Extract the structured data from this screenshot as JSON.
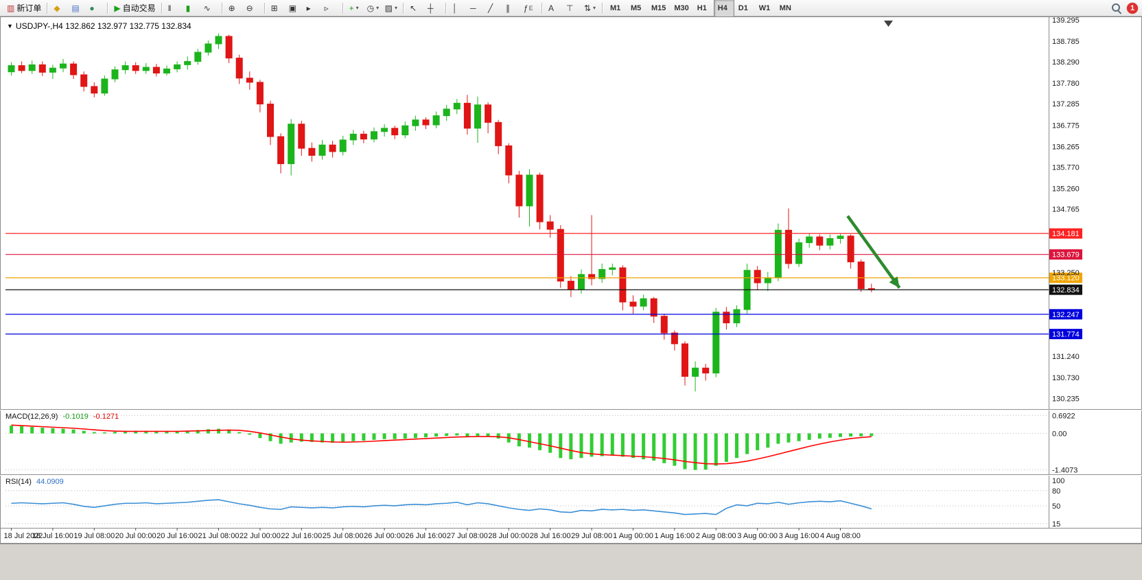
{
  "toolbar": {
    "notification_count": "1",
    "timeframes": [
      "M1",
      "M5",
      "M15",
      "M30",
      "H1",
      "H4",
      "D1",
      "W1",
      "MN"
    ],
    "active_timeframe": "H4",
    "groups": [
      {
        "name": "trade",
        "items": [
          {
            "name": "new-order-button",
            "glyph": "▥",
            "glyph_color": "#c03030",
            "label": "新订单"
          }
        ]
      },
      {
        "name": "windows",
        "items": [
          {
            "name": "symbols-icon-button",
            "glyph": "◆",
            "glyph_color": "#d4a017"
          },
          {
            "name": "market-watch-icon-button",
            "glyph": "▤",
            "glyph_color": "#4472c4"
          },
          {
            "name": "navigator-icon-button",
            "glyph": "●",
            "glyph_color": "#2e8b57"
          }
        ]
      },
      {
        "name": "autotrade",
        "items": [
          {
            "name": "autotrade-button",
            "glyph": "▶",
            "glyph_color": "#18a018",
            "label": "自动交易"
          }
        ]
      },
      {
        "name": "chart-type",
        "items": [
          {
            "name": "bars-chart-button",
            "glyph": "‖",
            "glyph_color": "#333333"
          },
          {
            "name": "candlestick-chart-button",
            "glyph": "▮",
            "glyph_color": "#18a018"
          },
          {
            "name": "line-chart-button",
            "glyph": "∿",
            "glyph_color": "#333333"
          }
        ]
      },
      {
        "name": "zoom",
        "items": [
          {
            "name": "zoom-in-button",
            "glyph": "⊕",
            "glyph_color": "#333333"
          },
          {
            "name": "zoom-out-button",
            "glyph": "⊖",
            "glyph_color": "#333333"
          }
        ]
      },
      {
        "name": "layout",
        "items": [
          {
            "name": "tile-windows-button",
            "glyph": "⊞",
            "glyph_color": "#333333"
          },
          {
            "name": "cascade-windows-button",
            "glyph": "▣",
            "glyph_color": "#333333"
          },
          {
            "name": "auto-scroll-button",
            "glyph": "▸",
            "glyph_color": "#333333"
          },
          {
            "name": "chart-shift-button",
            "glyph": "▹",
            "glyph_color": "#333333"
          }
        ]
      },
      {
        "name": "insert",
        "items": [
          {
            "name": "indicators-button",
            "glyph": "+",
            "glyph_color": "#18a018",
            "caret": true
          },
          {
            "name": "periods-button",
            "glyph": "◷",
            "glyph_color": "#333333",
            "caret": true
          },
          {
            "name": "templates-button",
            "glyph": "▨",
            "glyph_color": "#333333",
            "caret": true
          }
        ]
      },
      {
        "name": "cursor",
        "items": [
          {
            "name": "cursor-button",
            "glyph": "↖",
            "glyph_color": "#333333"
          },
          {
            "name": "crosshair-button",
            "glyph": "┼",
            "glyph_color": "#333333"
          }
        ]
      },
      {
        "name": "objects",
        "items": [
          {
            "name": "vertical-line-button",
            "glyph": "│",
            "glyph_color": "#333333"
          },
          {
            "name": "horizontal-line-button",
            "glyph": "─",
            "glyph_color": "#333333"
          },
          {
            "name": "trendline-button",
            "glyph": "╱",
            "glyph_color": "#333333"
          },
          {
            "name": "channel-button",
            "glyph": "∥",
            "glyph_color": "#333333"
          },
          {
            "name": "fibonacci-button",
            "glyph": "ƒ",
            "glyph_color": "#333333",
            "sub": "E"
          }
        ]
      },
      {
        "name": "text-tools",
        "items": [
          {
            "name": "text-button",
            "glyph": "A",
            "glyph_color": "#333333"
          },
          {
            "name": "label-button",
            "glyph": "⊤",
            "glyph_color": "#333333"
          },
          {
            "name": "arrows-button",
            "glyph": "⇅",
            "glyph_color": "#333333",
            "caret": true
          }
        ]
      }
    ]
  },
  "chart": {
    "title": "USDJPY-,H4 132.862 132.977 132.775 132.834",
    "symbol": "USDJPY-",
    "timeframe": "H4"
  },
  "indicators": {
    "macd": {
      "label": "MACD(12,26,9)",
      "value": "-0.1019",
      "signal_value": "-0.1271"
    },
    "rsi": {
      "label": "RSI(14)",
      "value": "44.0909"
    }
  },
  "colors": {
    "bull": "#1cb41c",
    "bear": "#e01515",
    "background": "#ffffff",
    "status_bg": "#d6d3ce",
    "arrow_green": "#2d8a2d",
    "line_red": "#ff2222",
    "line_crimson": "#dc143c",
    "line_orange": "#f0a500",
    "line_blue": "#0000dd",
    "line_black": "#111111"
  },
  "chart_data": [
    {
      "type": "candlestick",
      "title": "USDJPY-,H4",
      "ohlc_display": {
        "open": 132.862,
        "high": 132.977,
        "low": 132.775,
        "close": 132.834
      },
      "y_range": [
        130.01,
        139.31
      ],
      "y_ticks": [
        139.295,
        138.785,
        138.29,
        137.78,
        137.285,
        136.775,
        136.265,
        135.77,
        135.26,
        134.765,
        133.25,
        131.24,
        130.73,
        130.235
      ],
      "hlines": [
        {
          "price": 134.181,
          "color": "#ff2222",
          "name": "resistance-line-upper"
        },
        {
          "price": 133.679,
          "color": "#dc143c",
          "name": "resistance-line-lower"
        },
        {
          "price": 133.12,
          "color": "#f0a500",
          "name": "pivot-line-orange"
        },
        {
          "price": 132.834,
          "color": "#111111",
          "name": "current-price-line"
        },
        {
          "price": 132.247,
          "color": "#0000dd",
          "name": "support-line-upper"
        },
        {
          "price": 131.774,
          "color": "#0000dd",
          "name": "support-line-lower"
        }
      ],
      "x_ticks": {
        "every": 4,
        "labels": [
          "18 Jul 2022",
          "18 Jul 16:00",
          "19 Jul 08:00",
          "20 Jul 00:00",
          "20 Jul 16:00",
          "21 Jul 08:00",
          "22 Jul 00:00",
          "22 Jul 16:00",
          "25 Jul 08:00",
          "26 Jul 00:00",
          "26 Jul 16:00",
          "27 Jul 08:00",
          "28 Jul 00:00",
          "28 Jul 16:00",
          "29 Jul 08:00",
          "1 Aug 00:00",
          "1 Aug 16:00",
          "2 Aug 08:00",
          "3 Aug 00:00",
          "3 Aug 16:00",
          "4 Aug 08:00"
        ]
      },
      "arrow": {
        "from_index": 81,
        "from_price": 134.6,
        "to_index": 86,
        "to_price": 132.88,
        "color": "#2d8a2d"
      },
      "candles": [
        [
          138.05,
          138.28,
          137.96,
          138.2
        ],
        [
          138.2,
          138.3,
          138.02,
          138.08
        ],
        [
          138.08,
          138.32,
          138.0,
          138.22
        ],
        [
          138.22,
          138.3,
          137.95,
          138.04
        ],
        [
          138.04,
          138.22,
          137.88,
          138.14
        ],
        [
          138.14,
          138.36,
          138.04,
          138.24
        ],
        [
          138.24,
          138.3,
          137.88,
          137.98
        ],
        [
          137.98,
          138.06,
          137.58,
          137.7
        ],
        [
          137.7,
          137.8,
          137.44,
          137.54
        ],
        [
          137.54,
          137.96,
          137.48,
          137.88
        ],
        [
          137.88,
          138.18,
          137.8,
          138.1
        ],
        [
          138.1,
          138.3,
          138.0,
          138.2
        ],
        [
          138.2,
          138.28,
          138.0,
          138.08
        ],
        [
          138.08,
          138.26,
          138.0,
          138.16
        ],
        [
          138.16,
          138.24,
          137.94,
          138.02
        ],
        [
          138.02,
          138.2,
          137.96,
          138.12
        ],
        [
          138.12,
          138.3,
          138.04,
          138.22
        ],
        [
          138.22,
          138.42,
          138.1,
          138.3
        ],
        [
          138.3,
          138.6,
          138.22,
          138.52
        ],
        [
          138.52,
          138.8,
          138.44,
          138.72
        ],
        [
          138.72,
          138.97,
          138.6,
          138.9
        ],
        [
          138.9,
          138.94,
          138.26,
          138.38
        ],
        [
          138.38,
          138.46,
          137.76,
          137.9
        ],
        [
          137.9,
          138.06,
          137.62,
          137.8
        ],
        [
          137.8,
          137.86,
          137.08,
          137.28
        ],
        [
          137.28,
          137.36,
          136.3,
          136.5
        ],
        [
          136.5,
          136.58,
          135.62,
          135.85
        ],
        [
          135.85,
          136.92,
          135.57,
          136.8
        ],
        [
          136.8,
          136.88,
          136.04,
          136.22
        ],
        [
          136.22,
          136.36,
          135.9,
          136.05
        ],
        [
          136.05,
          136.42,
          135.95,
          136.3
        ],
        [
          136.3,
          136.4,
          136.0,
          136.14
        ],
        [
          136.14,
          136.52,
          136.05,
          136.42
        ],
        [
          136.42,
          136.66,
          136.3,
          136.56
        ],
        [
          136.56,
          136.64,
          136.34,
          136.44
        ],
        [
          136.44,
          136.72,
          136.36,
          136.62
        ],
        [
          136.62,
          136.8,
          136.5,
          136.7
        ],
        [
          136.7,
          136.76,
          136.44,
          136.54
        ],
        [
          136.54,
          136.86,
          136.46,
          136.76
        ],
        [
          136.76,
          137.0,
          136.64,
          136.9
        ],
        [
          136.9,
          136.96,
          136.68,
          136.78
        ],
        [
          136.78,
          137.1,
          136.7,
          137.0
        ],
        [
          137.0,
          137.26,
          136.88,
          137.16
        ],
        [
          137.16,
          137.4,
          137.04,
          137.3
        ],
        [
          137.3,
          137.5,
          136.55,
          136.7
        ],
        [
          136.7,
          137.46,
          136.35,
          137.26
        ],
        [
          137.26,
          137.32,
          136.58,
          136.84
        ],
        [
          136.84,
          136.9,
          136.08,
          136.28
        ],
        [
          136.28,
          136.34,
          135.38,
          135.58
        ],
        [
          135.58,
          135.68,
          134.56,
          134.84
        ],
        [
          134.84,
          135.72,
          134.35,
          135.58
        ],
        [
          135.58,
          135.64,
          134.28,
          134.46
        ],
        [
          134.46,
          134.62,
          134.08,
          134.28
        ],
        [
          134.28,
          134.38,
          132.88,
          133.04
        ],
        [
          133.04,
          133.16,
          132.66,
          132.84
        ],
        [
          132.84,
          133.32,
          132.74,
          133.2
        ],
        [
          133.2,
          134.62,
          132.94,
          133.1
        ],
        [
          133.1,
          133.46,
          133.0,
          133.32
        ],
        [
          133.32,
          133.46,
          133.18,
          133.36
        ],
        [
          133.36,
          133.42,
          132.34,
          132.54
        ],
        [
          132.54,
          132.7,
          132.26,
          132.44
        ],
        [
          132.44,
          132.72,
          132.34,
          132.62
        ],
        [
          132.62,
          132.66,
          132.04,
          132.2
        ],
        [
          132.2,
          132.26,
          131.64,
          131.8
        ],
        [
          131.8,
          131.86,
          131.38,
          131.54
        ],
        [
          131.54,
          131.6,
          130.54,
          130.76
        ],
        [
          130.76,
          131.12,
          130.4,
          130.96
        ],
        [
          130.96,
          131.06,
          130.66,
          130.84
        ],
        [
          130.84,
          132.4,
          130.74,
          132.3
        ],
        [
          132.3,
          132.42,
          131.88,
          132.04
        ],
        [
          132.04,
          132.46,
          131.94,
          132.36
        ],
        [
          132.36,
          133.46,
          132.26,
          133.3
        ],
        [
          133.3,
          133.4,
          132.82,
          133.0
        ],
        [
          133.0,
          133.26,
          132.8,
          133.12
        ],
        [
          133.12,
          134.42,
          133.04,
          134.26
        ],
        [
          134.26,
          134.78,
          133.34,
          133.46
        ],
        [
          133.46,
          134.06,
          133.38,
          133.96
        ],
        [
          133.96,
          134.18,
          133.84,
          134.1
        ],
        [
          134.1,
          134.16,
          133.78,
          133.9
        ],
        [
          133.9,
          134.16,
          133.8,
          134.06
        ],
        [
          134.06,
          134.18,
          133.94,
          134.12
        ],
        [
          134.12,
          134.16,
          133.34,
          133.5
        ],
        [
          133.5,
          133.56,
          132.78,
          132.86
        ],
        [
          132.862,
          132.977,
          132.775,
          132.834
        ]
      ]
    },
    {
      "type": "bar",
      "name": "MACD(12,26,9)",
      "current": -0.1019,
      "signal_current": -0.1271,
      "y_range": [
        -1.5,
        0.78
      ],
      "y_ticks": [
        {
          "v": 0.6922,
          "label": "0.6922"
        },
        {
          "v": 0,
          "label": "0.00"
        },
        {
          "v": -1.4073,
          "label": "-1.4073"
        }
      ],
      "histogram_color": "#32cd32",
      "signal_color": "#ff0000",
      "histogram": [
        0.3,
        0.28,
        0.25,
        0.22,
        0.2,
        0.18,
        0.15,
        0.1,
        0.05,
        0.04,
        0.06,
        0.08,
        0.1,
        0.1,
        0.08,
        0.07,
        0.08,
        0.1,
        0.13,
        0.16,
        0.18,
        0.15,
        0.05,
        -0.05,
        -0.18,
        -0.3,
        -0.4,
        -0.35,
        -0.32,
        -0.33,
        -0.35,
        -0.36,
        -0.34,
        -0.3,
        -0.28,
        -0.25,
        -0.22,
        -0.22,
        -0.2,
        -0.18,
        -0.15,
        -0.12,
        -0.1,
        -0.08,
        -0.12,
        -0.1,
        -0.12,
        -0.2,
        -0.35,
        -0.5,
        -0.55,
        -0.65,
        -0.75,
        -0.95,
        -1.0,
        -0.95,
        -0.9,
        -0.88,
        -0.85,
        -0.9,
        -0.95,
        -1.0,
        -1.05,
        -1.15,
        -1.25,
        -1.38,
        -1.41,
        -1.4,
        -1.25,
        -1.1,
        -0.95,
        -0.8,
        -0.65,
        -0.55,
        -0.4,
        -0.35,
        -0.3,
        -0.25,
        -0.2,
        -0.17,
        -0.14,
        -0.12,
        -0.11,
        -0.1019
      ],
      "signal": [
        0.32,
        0.3,
        0.28,
        0.26,
        0.24,
        0.22,
        0.2,
        0.17,
        0.14,
        0.11,
        0.09,
        0.08,
        0.08,
        0.08,
        0.08,
        0.08,
        0.08,
        0.09,
        0.1,
        0.11,
        0.12,
        0.13,
        0.12,
        0.08,
        0.02,
        -0.06,
        -0.14,
        -0.21,
        -0.26,
        -0.29,
        -0.31,
        -0.33,
        -0.34,
        -0.33,
        -0.32,
        -0.3,
        -0.28,
        -0.26,
        -0.24,
        -0.22,
        -0.2,
        -0.18,
        -0.16,
        -0.14,
        -0.13,
        -0.12,
        -0.12,
        -0.13,
        -0.17,
        -0.24,
        -0.32,
        -0.4,
        -0.48,
        -0.57,
        -0.66,
        -0.74,
        -0.79,
        -0.82,
        -0.84,
        -0.86,
        -0.88,
        -0.9,
        -0.93,
        -0.97,
        -1.02,
        -1.08,
        -1.13,
        -1.17,
        -1.18,
        -1.17,
        -1.13,
        -1.07,
        -0.99,
        -0.9,
        -0.8,
        -0.7,
        -0.6,
        -0.5,
        -0.41,
        -0.33,
        -0.26,
        -0.2,
        -0.16,
        -0.1271
      ]
    },
    {
      "type": "line",
      "name": "RSI(14)",
      "current": 44.0909,
      "y_range": [
        8,
        104
      ],
      "y_ticks": [
        {
          "v": 100,
          "label": "100"
        },
        {
          "v": 80,
          "label": "80",
          "level": true
        },
        {
          "v": 50,
          "label": "50",
          "level": true
        },
        {
          "v": 15,
          "label": "15",
          "level": true
        }
      ],
      "line_color": "#3a8fd6",
      "values": [
        55,
        56,
        55,
        54,
        55,
        56,
        53,
        49,
        47,
        50,
        53,
        55,
        55,
        56,
        54,
        55,
        56,
        57,
        59,
        61,
        62,
        58,
        54,
        51,
        47,
        44,
        43,
        48,
        47,
        46,
        47,
        46,
        48,
        49,
        48,
        50,
        51,
        50,
        52,
        53,
        52,
        54,
        55,
        57,
        52,
        56,
        54,
        50,
        46,
        43,
        41,
        44,
        42,
        38,
        37,
        41,
        40,
        43,
        42,
        43,
        41,
        42,
        40,
        38,
        36,
        33,
        34,
        35,
        33,
        45,
        52,
        50,
        55,
        54,
        57,
        53,
        56,
        58,
        59,
        58,
        60,
        55,
        50,
        44.09
      ]
    }
  ]
}
